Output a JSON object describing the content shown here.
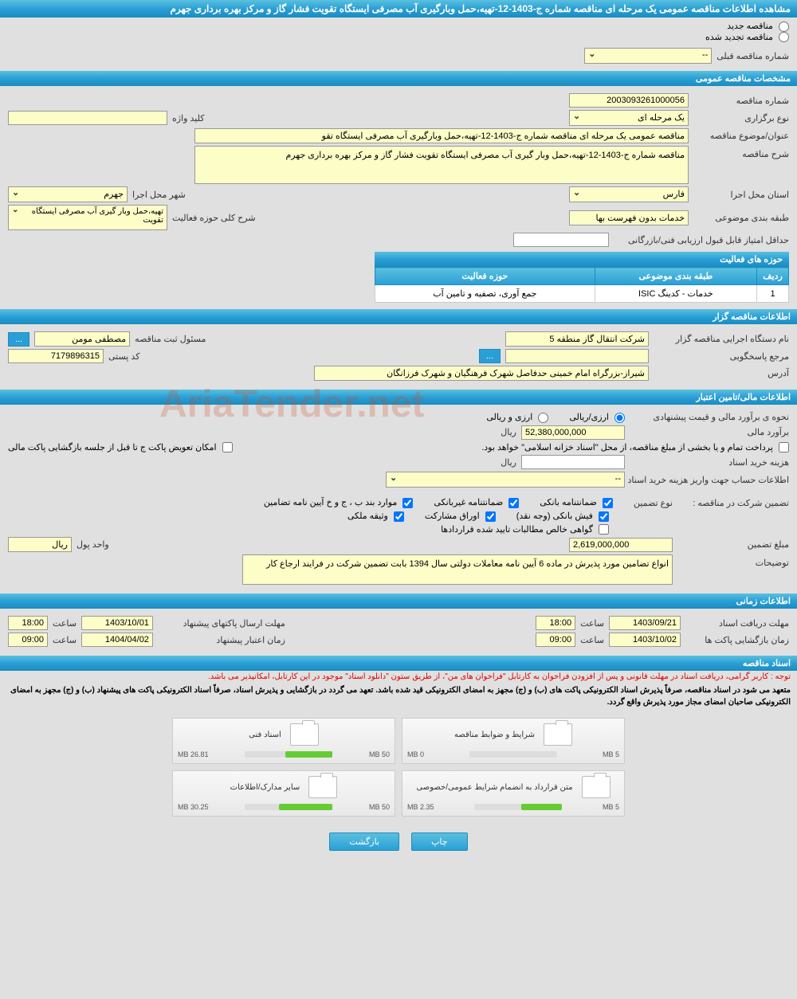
{
  "page_title": "مشاهده اطلاعات مناقصه عمومی یک مرحله ای مناقصه شماره ج-1403-12-تهیه،حمل وبارگیری آب مصرفی ایستگاه تقویت فشار گاز و مرکز بهره برداری جهرم",
  "radios": {
    "new": "مناقصه جدید",
    "renewed": "مناقصه تجدید شده"
  },
  "prev_label": "شماره مناقصه قبلی",
  "prev_value": "--",
  "sections": {
    "general": "مشخصات مناقصه عمومی",
    "org": "اطلاعات مناقصه گزار",
    "finance": "اطلاعات مالی/تامین اعتبار",
    "time": "اطلاعات زمانی",
    "docs": "اسناد مناقصه"
  },
  "general": {
    "num_label": "شماره مناقصه",
    "num": "2003093261000056",
    "type_label": "نوع برگزاری",
    "type": "یک مرحله ای",
    "keyword_label": "کلید واژه",
    "keyword": "",
    "title_label": "عنوان/موضوع مناقصه",
    "title": "مناقصه عمومی یک مرحله ای مناقصه شماره ج-1403-12-تهیه،حمل وبارگیری آب مصرفی ایستگاه تقو",
    "desc_label": "شرح مناقصه",
    "desc": "مناقصه شماره ج-1403-12-تهیه،حمل وبار گیری آب مصرفی ایستگاه تقویت فشار گاز و مرکز بهره برداری جهرم",
    "province_label": "استان محل اجرا",
    "province": "فارس",
    "city_label": "شهر محل اجرا",
    "city": "جهرم",
    "cat_label": "طبقه بندی موضوعی",
    "cat": "خدمات بدون فهرست بها",
    "scope_label": "شرح کلی حوزه فعالیت",
    "scope": "تهیه،حمل وبار گیری آب مصرفی ایستگاه تقویت",
    "min_score_label": "حداقل امتیاز قابل قبول ارزیابی فنی/بازرگانی",
    "min_score": "",
    "fields_title": "حوزه های فعالیت",
    "tbl_row": "ردیف",
    "tbl_cat": "طبقه بندی موضوعی",
    "tbl_field": "حوزه فعالیت",
    "tbl": [
      {
        "n": "1",
        "cat": "خدمات - کدینگ ISIC",
        "field": "جمع آوری، تصفیه و تامین آب"
      }
    ]
  },
  "org": {
    "name_label": "نام دستگاه اجرایی مناقصه گزار",
    "name": "شرکت انتقال گاز منطقه 5",
    "reg_label": "مسئول ثبت مناقصه",
    "reg": "مصطفی  مومن",
    "resp_label": "مرجع پاسخگویی",
    "resp": "",
    "postal_label": "کد پستی",
    "postal": "7179896315",
    "addr_label": "آدرس",
    "addr": "شیراز-بزرگراه امام خمینی حدفاصل شهرک فرهنگیان و شهرک فرزانگان"
  },
  "finance": {
    "method_label": "نحوه ی برآورد مالی و قیمت پیشنهادی",
    "method_opt1": "ارزی/ریالی",
    "method_opt2": "ارزی و ریالی",
    "est_label": "برآورد مالی",
    "est": "52,380,000,000",
    "unit": "ریال",
    "pay_note": "پرداخت تمام و یا بخشی از مبلغ مناقصه، از محل \"اسناد خزانه اسلامی\" خواهد بود.",
    "replace_note": "امکان تعویض پاکت ج تا قبل از جلسه بازگشایی پاکت مالی",
    "cost_label": "هزینه خرید اسناد",
    "cost": "",
    "cost_unit": "ریال",
    "account_label": "اطلاعات حساب جهت واریز هزینه خرید اسناد",
    "account": "--",
    "guarantee_label": "تضمین شرکت در مناقصه :",
    "gtype_label": "نوع تضمین",
    "g_bank": "ضمانتنامه بانکی",
    "g_nonbank": "ضمانتنامه غیربانکی",
    "g_items": "موارد بند ب ، ج و خ آیین نامه تضامین",
    "g_cash": "فیش بانکی (وجه نقد)",
    "g_bonds": "اوراق مشارکت",
    "g_prop": "وثیقه ملکی",
    "g_cert": "گواهی خالص مطالبات تایید شده قراردادها",
    "gamt_label": "مبلغ تضمین",
    "gamt": "2,619,000,000",
    "gunit_label": "واحد پول",
    "gunit": "ریال",
    "gdesc_label": "توضیحات",
    "gdesc": "انواع تضامین مورد پذیرش در ماده 6 آیین نامه معاملات دولتی سال 1394 بابت تضمین شرکت در فرایند ارجاع کار"
  },
  "time": {
    "recv_label": "مهلت دریافت اسناد",
    "recv_date": "1403/09/21",
    "recv_time_label": "ساعت",
    "recv_time": "18:00",
    "send_label": "مهلت ارسال پاکتهای پیشنهاد",
    "send_date": "1403/10/01",
    "send_time": "18:00",
    "open_label": "زمان بازگشایی پاکت ها",
    "open_date": "1403/10/02",
    "open_time": "09:00",
    "valid_label": "زمان اعتبار پیشنهاد",
    "valid_date": "1404/04/02",
    "valid_time": "09:00"
  },
  "docs": {
    "note_red": "توجه : کاربر گرامی، دریافت اسناد در مهلت قانونی و پس از افزودن فراخوان به کارتابل \"فراخوان های من\"، از طریق ستون \"دانلود اسناد\" موجود در این کارتابل، امکانپذیر می باشد.",
    "note_black": "متعهد می شود در اسناد مناقصه، صرفاً پذیرش اسناد الکترونیکی پاکت های (ب) و (ج) مجهز به امضای الکترونیکی قید شده باشد. تعهد می گردد در بازگشایی و پذیرش اسناد، صرفاً اسناد الکترونیکی پاکت های پیشنهاد (ب) و (ج) مجهز به امضای الکترونیکی صاحبان امضای مجاز مورد پذیرش واقع گردد.",
    "files": [
      {
        "title": "شرایط و ضوابط مناقصه",
        "used": "0 MB",
        "total": "5 MB",
        "pct": 0
      },
      {
        "title": "اسناد فنی",
        "used": "26.81 MB",
        "total": "50 MB",
        "pct": 54
      },
      {
        "title": "متن قرارداد به انضمام شرایط عمومی/خصوصی",
        "used": "2.35 MB",
        "total": "5 MB",
        "pct": 47
      },
      {
        "title": "سایر مدارک/اطلاعات",
        "used": "30.25 MB",
        "total": "50 MB",
        "pct": 61
      }
    ]
  },
  "footer": {
    "print": "چاپ",
    "back": "بازگشت"
  },
  "watermark": "AriaTender.net",
  "colors": {
    "header_bg": "#2a9fd6",
    "field_bg": "#fdfdc8",
    "page_bg": "#e0e0e0"
  }
}
